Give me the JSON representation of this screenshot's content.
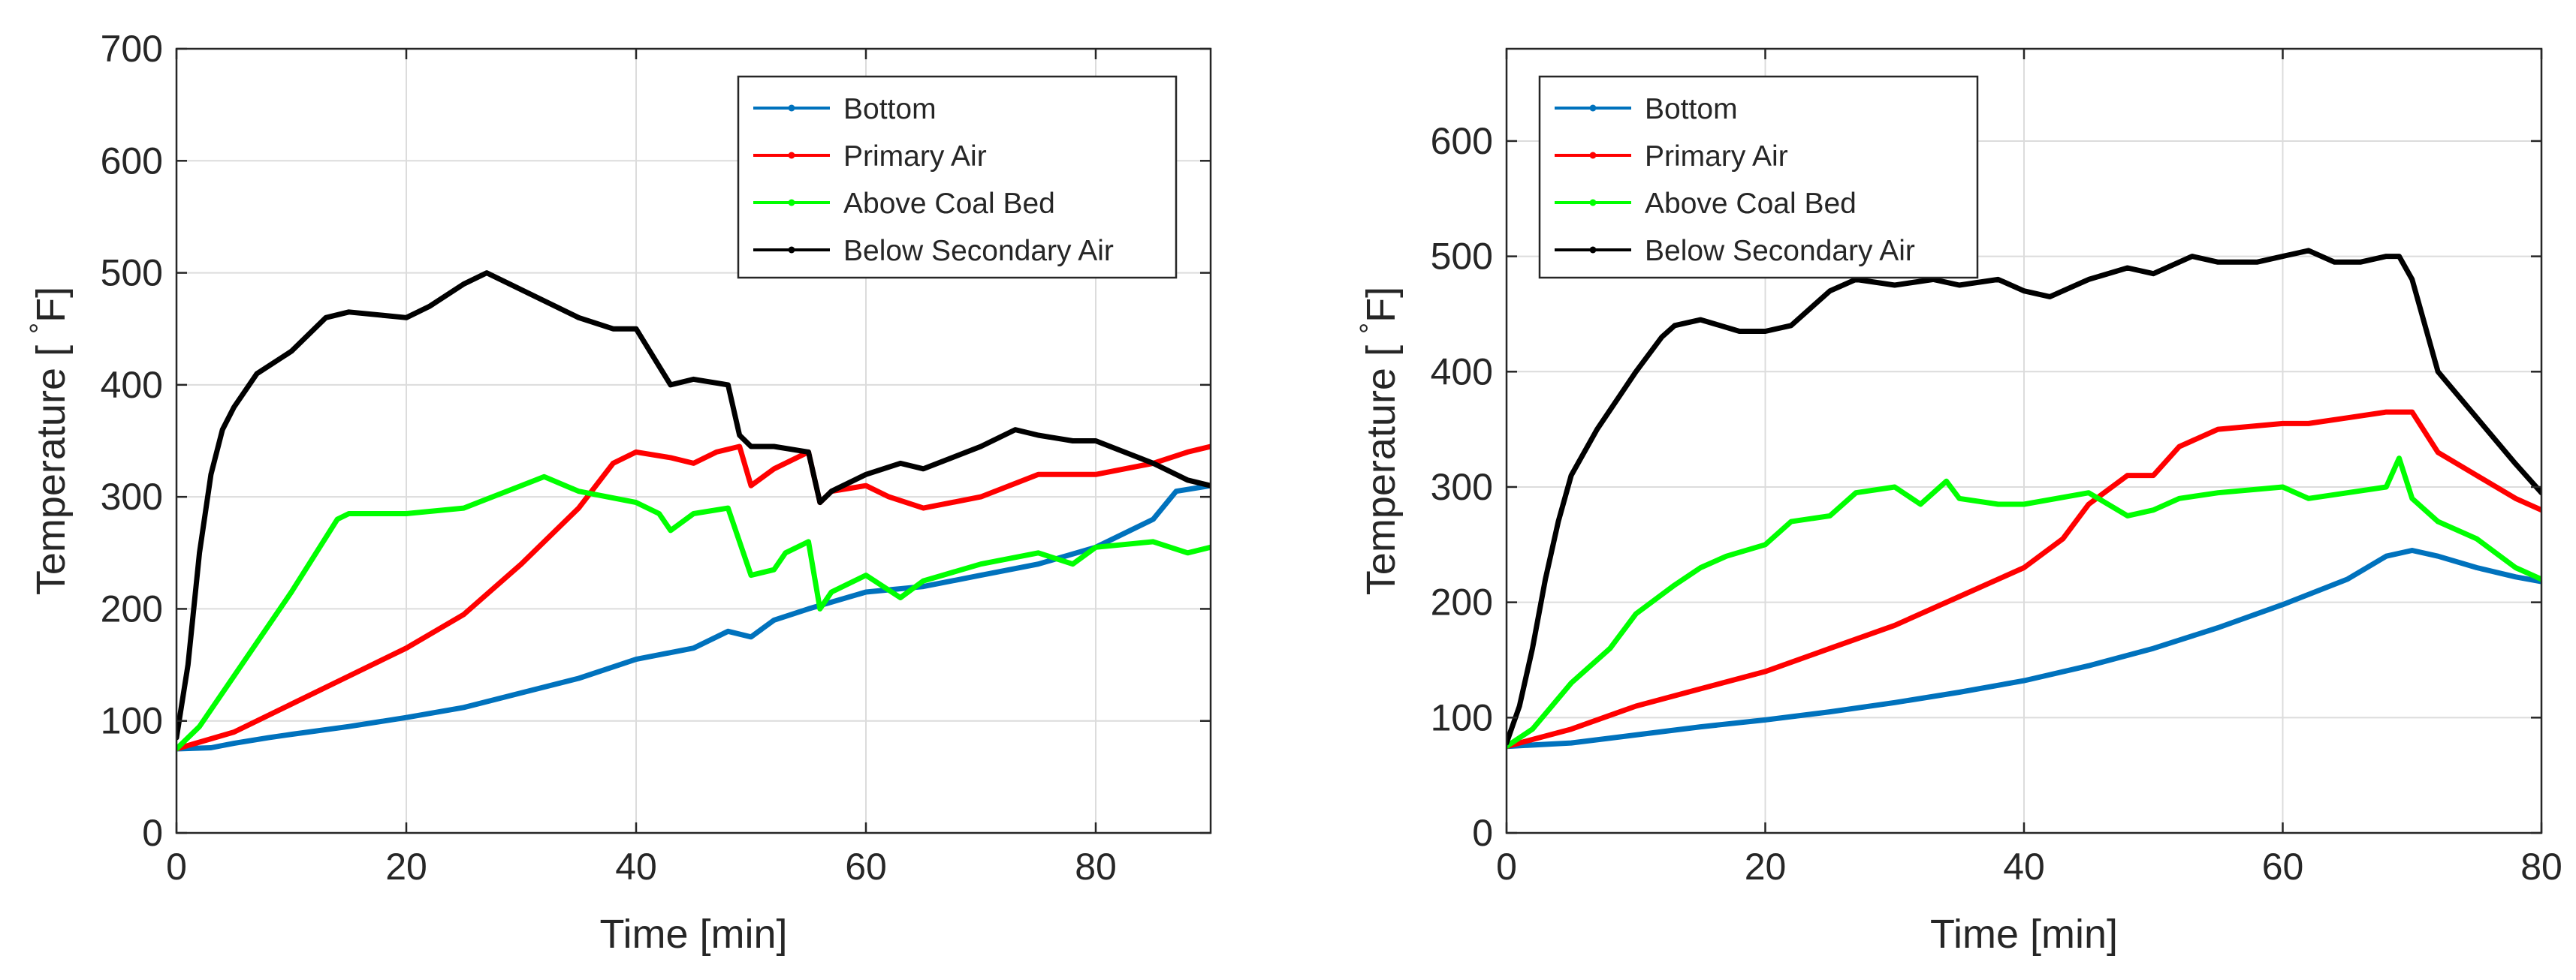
{
  "chart_data": [
    {
      "type": "line",
      "title": "",
      "xlabel": "Time [min]",
      "ylabel_prefix": "Temperature [ ",
      "ylabel_degree": "°",
      "ylabel_unit": "F]",
      "xlim": [
        0,
        90
      ],
      "ylim": [
        0,
        700
      ],
      "xticks": [
        0,
        20,
        40,
        60,
        80
      ],
      "yticks": [
        0,
        100,
        200,
        300,
        400,
        500,
        600,
        700
      ],
      "grid": true,
      "legend_position": "top-right",
      "series": [
        {
          "name": "Bottom",
          "color": "#0072BD",
          "x": [
            0,
            3,
            5,
            8,
            10,
            15,
            20,
            25,
            30,
            35,
            40,
            45,
            48,
            50,
            52,
            55,
            60,
            65,
            70,
            75,
            80,
            85,
            87,
            90
          ],
          "y": [
            75,
            76,
            80,
            85,
            88,
            95,
            103,
            112,
            125,
            138,
            155,
            165,
            180,
            175,
            190,
            200,
            215,
            220,
            230,
            240,
            255,
            280,
            305,
            310
          ]
        },
        {
          "name": "Primary Air",
          "color": "#FF0000",
          "x": [
            0,
            5,
            10,
            15,
            20,
            25,
            30,
            35,
            38,
            40,
            43,
            45,
            47,
            49,
            50,
            52,
            55,
            56,
            57,
            60,
            62,
            65,
            70,
            75,
            80,
            85,
            88,
            90
          ],
          "y": [
            75,
            90,
            115,
            140,
            165,
            195,
            240,
            290,
            330,
            340,
            335,
            330,
            340,
            345,
            310,
            325,
            340,
            295,
            305,
            310,
            300,
            290,
            300,
            320,
            320,
            330,
            340,
            345
          ]
        },
        {
          "name": "Above Coal Bed",
          "color": "#00FF00",
          "x": [
            0,
            2,
            5,
            10,
            14,
            15,
            20,
            25,
            30,
            32,
            35,
            40,
            42,
            43,
            45,
            48,
            50,
            52,
            53,
            55,
            56,
            57,
            60,
            63,
            65,
            70,
            75,
            78,
            80,
            85,
            88,
            90
          ],
          "y": [
            75,
            95,
            140,
            215,
            280,
            285,
            285,
            290,
            310,
            318,
            305,
            295,
            285,
            270,
            285,
            290,
            230,
            235,
            250,
            260,
            200,
            215,
            230,
            210,
            225,
            240,
            250,
            240,
            255,
            260,
            250,
            255
          ]
        },
        {
          "name": "Below Secondary Air",
          "color": "#000000",
          "x": [
            0,
            1,
            2,
            3,
            4,
            5,
            7,
            10,
            13,
            15,
            20,
            22,
            25,
            27,
            30,
            35,
            38,
            40,
            43,
            45,
            48,
            49,
            50,
            52,
            55,
            56,
            57,
            60,
            63,
            65,
            70,
            73,
            75,
            78,
            80,
            85,
            88,
            90
          ],
          "y": [
            85,
            150,
            250,
            320,
            360,
            380,
            410,
            430,
            460,
            465,
            460,
            470,
            490,
            500,
            485,
            460,
            450,
            450,
            400,
            405,
            400,
            355,
            345,
            345,
            340,
            295,
            305,
            320,
            330,
            325,
            345,
            360,
            355,
            350,
            350,
            330,
            315,
            310
          ]
        }
      ]
    },
    {
      "type": "line",
      "title": "",
      "xlabel": "Time [min]",
      "ylabel_prefix": "Temperature [ ",
      "ylabel_degree": "°",
      "ylabel_unit": "F]",
      "xlim": [
        0,
        80
      ],
      "ylim": [
        0,
        680
      ],
      "xticks": [
        0,
        20,
        40,
        60,
        80
      ],
      "yticks": [
        0,
        100,
        200,
        300,
        400,
        500,
        600
      ],
      "grid": true,
      "legend_position": "top-left",
      "series": [
        {
          "name": "Bottom",
          "color": "#0072BD",
          "x": [
            0,
            5,
            10,
            15,
            20,
            25,
            30,
            35,
            40,
            45,
            50,
            55,
            60,
            65,
            68,
            70,
            72,
            75,
            78,
            80
          ],
          "y": [
            75,
            78,
            85,
            92,
            98,
            105,
            113,
            122,
            132,
            145,
            160,
            178,
            198,
            220,
            240,
            245,
            240,
            230,
            222,
            218
          ]
        },
        {
          "name": "Primary Air",
          "color": "#FF0000",
          "x": [
            0,
            5,
            10,
            15,
            20,
            25,
            30,
            35,
            40,
            43,
            45,
            48,
            50,
            52,
            55,
            60,
            62,
            65,
            68,
            70,
            72,
            75,
            78,
            80
          ],
          "y": [
            75,
            90,
            110,
            125,
            140,
            160,
            180,
            205,
            230,
            255,
            285,
            310,
            310,
            335,
            350,
            355,
            355,
            360,
            365,
            365,
            330,
            310,
            290,
            280
          ]
        },
        {
          "name": "Above Coal Bed",
          "color": "#00FF00",
          "x": [
            0,
            2,
            5,
            8,
            10,
            13,
            15,
            17,
            20,
            22,
            25,
            27,
            30,
            32,
            34,
            35,
            38,
            40,
            45,
            48,
            50,
            52,
            55,
            60,
            62,
            65,
            68,
            69,
            70,
            72,
            75,
            78,
            80
          ],
          "y": [
            75,
            90,
            130,
            160,
            190,
            215,
            230,
            240,
            250,
            270,
            275,
            295,
            300,
            285,
            305,
            290,
            285,
            285,
            295,
            275,
            280,
            290,
            295,
            300,
            290,
            295,
            300,
            325,
            290,
            270,
            255,
            230,
            220
          ]
        },
        {
          "name": "Below Secondary Air",
          "color": "#000000",
          "x": [
            0,
            1,
            2,
            3,
            4,
            5,
            7,
            10,
            12,
            13,
            15,
            18,
            20,
            22,
            25,
            27,
            30,
            33,
            35,
            38,
            40,
            42,
            45,
            48,
            50,
            53,
            55,
            58,
            60,
            62,
            64,
            66,
            68,
            69,
            70,
            72,
            75,
            78,
            80
          ],
          "y": [
            78,
            110,
            160,
            220,
            270,
            310,
            350,
            400,
            430,
            440,
            445,
            435,
            435,
            440,
            470,
            480,
            475,
            480,
            475,
            480,
            470,
            465,
            480,
            490,
            485,
            500,
            495,
            495,
            500,
            505,
            495,
            495,
            500,
            500,
            480,
            400,
            360,
            320,
            295
          ]
        }
      ]
    }
  ]
}
